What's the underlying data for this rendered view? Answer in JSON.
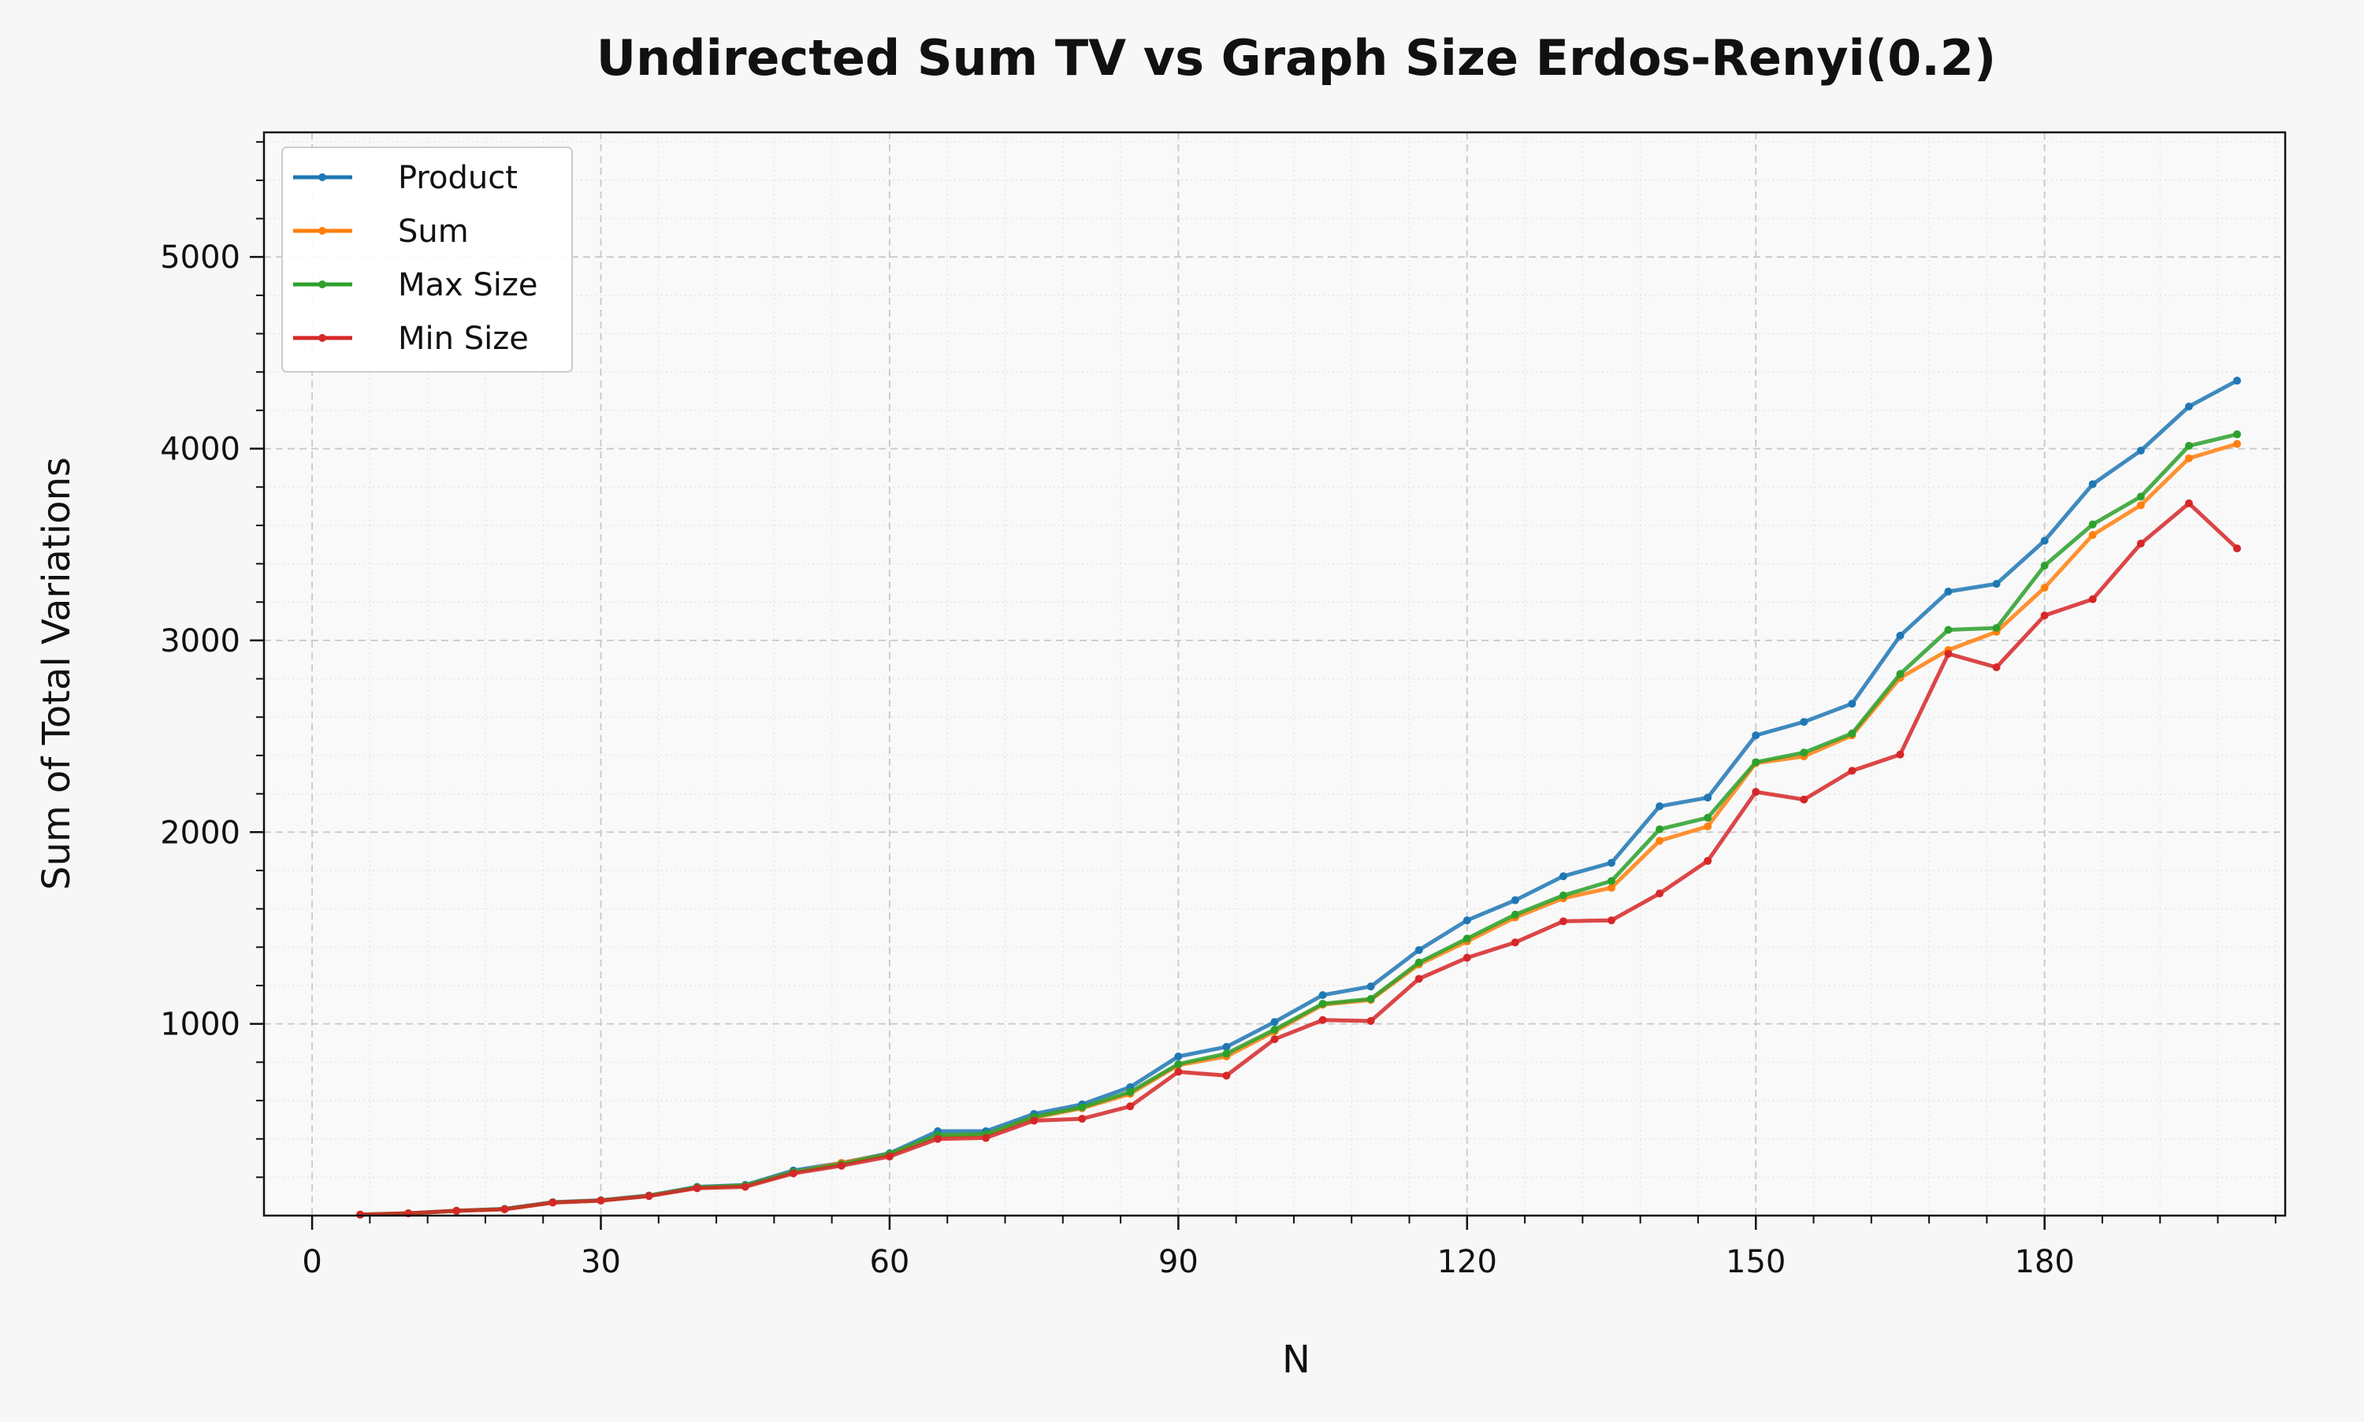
{
  "chart_data": {
    "type": "line",
    "title": "Undirected Sum TV vs Graph Size Erdos-Renyi(0.2)",
    "xlabel": "N",
    "ylabel": "Sum of Total Variations",
    "xlim": [
      -5,
      205
    ],
    "ylim": [
      0,
      5650
    ],
    "xticks": [
      0,
      30,
      60,
      90,
      120,
      150,
      180
    ],
    "yticks": [
      1000,
      2000,
      3000,
      4000,
      5000
    ],
    "grid": true,
    "legend_position": "top-left",
    "x": [
      5,
      10,
      15,
      20,
      25,
      30,
      35,
      40,
      45,
      50,
      55,
      60,
      65,
      70,
      75,
      80,
      85,
      90,
      95,
      100,
      105,
      110,
      115,
      120,
      125,
      130,
      135,
      140,
      145,
      150,
      155,
      160,
      165,
      170,
      175,
      180,
      185,
      190,
      195,
      200
    ],
    "series": [
      {
        "name": "Product",
        "color": "#1f77b4",
        "values": [
          5,
          12,
          25,
          35,
          70,
          80,
          105,
          150,
          160,
          235,
          275,
          325,
          440,
          440,
          530,
          580,
          670,
          830,
          880,
          1010,
          1150,
          1195,
          1385,
          1540,
          1645,
          1770,
          1840,
          2135,
          2180,
          2505,
          2575,
          2670,
          3025,
          3255,
          3295,
          3520,
          3815,
          3990,
          4220,
          4355
        ]
      },
      {
        "name": "Sum",
        "color": "#ff7f0e",
        "values": [
          5,
          12,
          25,
          33,
          68,
          78,
          103,
          145,
          155,
          225,
          275,
          320,
          415,
          420,
          510,
          560,
          635,
          785,
          830,
          960,
          1100,
          1125,
          1310,
          1430,
          1555,
          1655,
          1710,
          1955,
          2030,
          2360,
          2395,
          2505,
          2805,
          2950,
          3045,
          3275,
          3550,
          3705,
          3950,
          4025
        ]
      },
      {
        "name": "Max Size",
        "color": "#2ca02c",
        "values": [
          5,
          12,
          25,
          34,
          69,
          79,
          104,
          147,
          157,
          228,
          268,
          322,
          420,
          425,
          515,
          565,
          645,
          790,
          845,
          970,
          1105,
          1130,
          1320,
          1445,
          1570,
          1670,
          1745,
          2015,
          2075,
          2365,
          2415,
          2515,
          2825,
          3055,
          3065,
          3390,
          3605,
          3750,
          4015,
          4075
        ]
      },
      {
        "name": "Min Size",
        "color": "#d62728",
        "values": [
          5,
          12,
          25,
          33,
          68,
          78,
          102,
          143,
          150,
          220,
          260,
          308,
          400,
          405,
          495,
          505,
          570,
          750,
          730,
          920,
          1020,
          1015,
          1235,
          1345,
          1425,
          1535,
          1540,
          1680,
          1850,
          2210,
          2170,
          2320,
          2405,
          2930,
          2860,
          3130,
          3215,
          3505,
          3715,
          3480
        ]
      }
    ]
  }
}
